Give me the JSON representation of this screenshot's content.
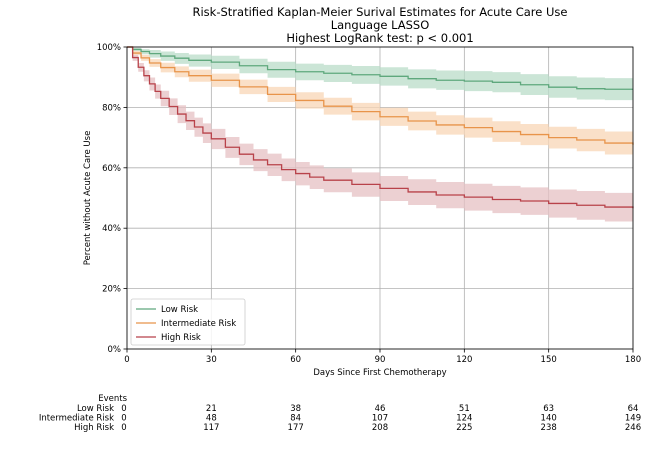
{
  "chart_data": {
    "type": "line",
    "title": "Risk-Stratified Kaplan-Meier Surival Estimates for Acute Care Use",
    "subtitle": "Language LASSO",
    "subtitle2": "Highest LogRank test: p < 0.001",
    "xlabel": "Days Since First Chemotherapy",
    "ylabel": "Percent without Acute Care Use",
    "xlim": [
      0,
      180
    ],
    "ylim": [
      0,
      100
    ],
    "x_ticks": [
      "0",
      "30",
      "60",
      "90",
      "120",
      "150",
      "180"
    ],
    "y_ticks": [
      "0%",
      "20%",
      "40%",
      "60%",
      "80%",
      "100%"
    ],
    "grid": "on",
    "legend_position": "lower-left",
    "legend": [
      "Low Risk",
      "Intermediate Risk",
      "High Risk"
    ],
    "series": [
      {
        "name": "Low Risk",
        "color": "#5fa87d",
        "band_color": "#b9dcc8",
        "x": [
          0,
          2,
          5,
          8,
          12,
          17,
          22,
          30,
          40,
          50,
          60,
          70,
          80,
          90,
          100,
          110,
          120,
          130,
          140,
          150,
          160,
          170,
          180
        ],
        "y": [
          100,
          99.2,
          98.5,
          97.8,
          97.0,
          96.3,
          95.6,
          95.0,
          93.8,
          92.5,
          91.8,
          91.3,
          90.8,
          90.3,
          89.5,
          89.0,
          88.7,
          88.3,
          87.5,
          86.7,
          86.2,
          86.0,
          86.0
        ],
        "lower": [
          100,
          98.7,
          97.6,
          96.5,
          95.4,
          94.4,
          93.5,
          92.7,
          91.3,
          89.8,
          89.0,
          88.4,
          87.8,
          87.2,
          86.3,
          85.8,
          85.4,
          85.0,
          84.1,
          83.2,
          82.6,
          82.4,
          82.4
        ],
        "upper": [
          100,
          99.7,
          99.3,
          99.0,
          98.5,
          98.0,
          97.5,
          97.1,
          96.1,
          95.1,
          94.5,
          94.1,
          93.7,
          93.3,
          92.6,
          92.2,
          92.0,
          91.7,
          91.0,
          90.3,
          89.9,
          89.7,
          89.7
        ]
      },
      {
        "name": "Intermediate Risk",
        "color": "#e8944a",
        "band_color": "#f8d6b5",
        "x": [
          0,
          2,
          5,
          8,
          12,
          17,
          22,
          30,
          40,
          50,
          60,
          70,
          80,
          90,
          100,
          110,
          120,
          130,
          140,
          150,
          160,
          170,
          180
        ],
        "y": [
          100,
          98.0,
          96.4,
          94.7,
          93.2,
          91.8,
          90.5,
          89.0,
          86.8,
          84.3,
          82.3,
          80.4,
          78.6,
          76.9,
          75.5,
          74.2,
          73.3,
          72.0,
          71.0,
          70.0,
          69.2,
          68.2,
          67.6
        ],
        "lower": [
          100,
          97.3,
          95.4,
          93.4,
          91.6,
          90.0,
          88.5,
          86.8,
          84.4,
          81.8,
          79.6,
          77.6,
          75.7,
          73.9,
          72.4,
          71.0,
          70.0,
          68.6,
          67.5,
          66.4,
          65.5,
          64.4,
          63.7
        ],
        "upper": [
          100,
          98.7,
          97.4,
          96.0,
          94.8,
          93.6,
          92.5,
          91.2,
          89.2,
          86.8,
          85.0,
          83.2,
          81.5,
          79.9,
          78.6,
          77.4,
          76.6,
          75.4,
          74.5,
          73.6,
          72.9,
          72.0,
          71.5
        ]
      },
      {
        "name": "High Risk",
        "color": "#b8424a",
        "band_color": "#e6c0c3",
        "x": [
          0,
          2,
          4,
          6,
          8,
          10,
          12,
          15,
          18,
          21,
          24,
          27,
          30,
          35,
          40,
          45,
          50,
          55,
          60,
          65,
          70,
          80,
          90,
          100,
          110,
          120,
          130,
          140,
          150,
          160,
          170,
          180
        ],
        "y": [
          100,
          96.5,
          93.3,
          90.5,
          87.8,
          85.3,
          83.0,
          80.3,
          77.8,
          75.6,
          73.5,
          71.5,
          69.6,
          66.8,
          64.5,
          62.6,
          61.0,
          59.4,
          58.1,
          56.9,
          55.9,
          54.5,
          53.2,
          52.0,
          51.0,
          50.3,
          49.5,
          49.0,
          48.2,
          47.6,
          47.0,
          46.6
        ],
        "lower": [
          100,
          95.4,
          91.8,
          88.6,
          85.6,
          82.9,
          80.4,
          77.5,
          74.8,
          72.5,
          70.3,
          68.2,
          66.2,
          63.3,
          60.9,
          58.9,
          57.3,
          55.6,
          54.2,
          53.0,
          51.9,
          50.4,
          49.0,
          47.7,
          46.6,
          45.8,
          45.0,
          44.4,
          43.5,
          42.8,
          42.2,
          41.7
        ],
        "upper": [
          100,
          97.4,
          94.7,
          92.3,
          89.9,
          87.6,
          85.5,
          83.0,
          80.7,
          78.6,
          76.6,
          74.7,
          72.9,
          70.2,
          68.0,
          66.2,
          64.7,
          63.1,
          61.9,
          60.8,
          59.8,
          58.5,
          57.3,
          56.2,
          55.3,
          54.7,
          54.0,
          53.5,
          52.8,
          52.3,
          51.7,
          51.4
        ]
      }
    ],
    "risk_table": {
      "header": "Events",
      "rows": [
        {
          "label": "Low Risk",
          "values": [
            "0",
            "21",
            "38",
            "46",
            "51",
            "63",
            "64"
          ]
        },
        {
          "label": "Intermediate Risk",
          "values": [
            "0",
            "48",
            "84",
            "107",
            "124",
            "140",
            "149"
          ]
        },
        {
          "label": "High Risk",
          "values": [
            "0",
            "117",
            "177",
            "208",
            "225",
            "238",
            "246"
          ]
        }
      ]
    }
  }
}
